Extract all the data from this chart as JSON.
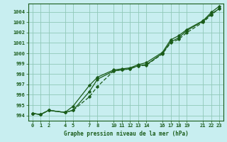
{
  "title": "Graphe pression niveau de la mer (hPa)",
  "bg_color": "#c8eef0",
  "grid_color": "#90c8b8",
  "line_color": "#1a5c1a",
  "xlim": [
    -0.5,
    23.5
  ],
  "ylim": [
    993.5,
    1004.8
  ],
  "xticks": [
    0,
    1,
    2,
    4,
    5,
    7,
    8,
    10,
    11,
    12,
    13,
    14,
    16,
    17,
    18,
    19,
    21,
    22,
    23
  ],
  "yticks": [
    994,
    995,
    996,
    997,
    998,
    999,
    1000,
    1001,
    1002,
    1003,
    1004
  ],
  "series1_x": [
    0,
    1,
    2,
    4,
    5,
    7,
    8,
    10,
    11,
    12,
    13,
    14,
    16,
    17,
    18,
    19,
    21,
    22,
    23
  ],
  "series1_y": [
    994.2,
    994.1,
    994.5,
    994.3,
    994.5,
    996.3,
    997.5,
    998.3,
    998.4,
    998.5,
    998.8,
    998.9,
    1000.0,
    1001.1,
    1001.5,
    1002.2,
    1003.1,
    1003.8,
    1004.3
  ],
  "series2_x": [
    0,
    1,
    2,
    4,
    5,
    7,
    8,
    10,
    11,
    12,
    13,
    14,
    16,
    17,
    18,
    19,
    21,
    22,
    23
  ],
  "series2_y": [
    994.2,
    994.1,
    994.5,
    994.3,
    994.5,
    995.8,
    996.8,
    998.3,
    998.4,
    998.5,
    998.8,
    998.85,
    999.95,
    1001.0,
    1001.35,
    1002.0,
    1003.0,
    1003.7,
    1004.35
  ],
  "series3_x": [
    0,
    1,
    2,
    4,
    5,
    7,
    8,
    10,
    11,
    12,
    13,
    14,
    16,
    17,
    18,
    19,
    21,
    22,
    23
  ],
  "series3_y": [
    994.2,
    994.1,
    994.5,
    994.3,
    994.9,
    996.9,
    997.7,
    998.4,
    998.5,
    998.6,
    998.9,
    999.1,
    1000.1,
    1001.3,
    1001.7,
    1002.3,
    1003.15,
    1003.95,
    1004.55
  ]
}
